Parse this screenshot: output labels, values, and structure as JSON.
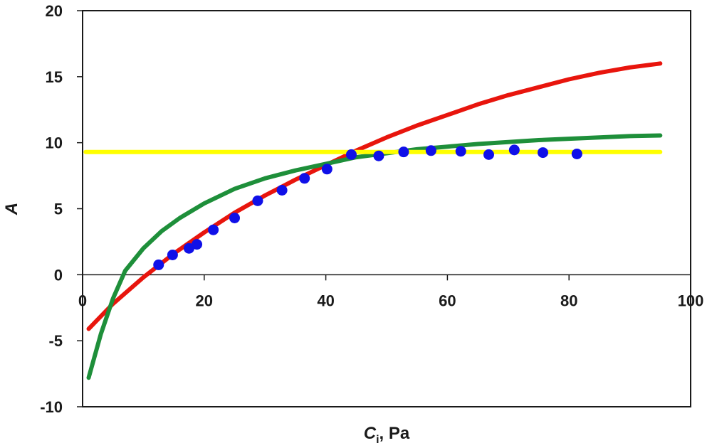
{
  "chart_data": {
    "type": "scatter",
    "xlim": [
      0,
      100
    ],
    "ylim": [
      -10,
      20
    ],
    "x_ticks": [
      0,
      20,
      40,
      60,
      80,
      100
    ],
    "y_ticks": [
      -10,
      -5,
      0,
      5,
      10,
      15,
      20
    ],
    "xlabel_main": "C",
    "xlabel_sub": "i",
    "xlabel_rest": ", Pa",
    "ylabel": "A",
    "grid": false,
    "legend": "none",
    "series": [
      {
        "kind": "line",
        "color": "#e8150d",
        "x": [
          1,
          5,
          10,
          15,
          20,
          25,
          30,
          35,
          40,
          45,
          50,
          55,
          60,
          65,
          70,
          75,
          80,
          85,
          90,
          95
        ],
        "y": [
          -4.1,
          -2.2,
          -0.2,
          1.6,
          3.2,
          4.7,
          6.0,
          7.2,
          8.3,
          9.4,
          10.4,
          11.3,
          12.1,
          12.9,
          13.6,
          14.2,
          14.8,
          15.3,
          15.7,
          16.0
        ]
      },
      {
        "kind": "line",
        "color": "#1e8f3a",
        "x": [
          1,
          3,
          5,
          7,
          10,
          13,
          16,
          20,
          25,
          30,
          35,
          40,
          45,
          50,
          55,
          60,
          65,
          70,
          75,
          80,
          85,
          90,
          95
        ],
        "y": [
          -7.8,
          -4.5,
          -1.8,
          0.3,
          2.0,
          3.3,
          4.3,
          5.4,
          6.5,
          7.3,
          7.9,
          8.4,
          8.9,
          9.2,
          9.5,
          9.7,
          9.9,
          10.05,
          10.2,
          10.3,
          10.4,
          10.5,
          10.55
        ]
      },
      {
        "kind": "line",
        "color": "#ffff00",
        "x": [
          0.5,
          95
        ],
        "y": [
          9.3,
          9.3
        ]
      },
      {
        "kind": "scatter",
        "color": "#1010e8",
        "x": [
          12.5,
          14.8,
          17.5,
          18.8,
          21.5,
          25.0,
          28.8,
          32.8,
          36.5,
          40.2,
          44.2,
          48.7,
          52.8,
          57.3,
          62.2,
          66.8,
          71.0,
          75.7,
          81.3
        ],
        "y": [
          0.75,
          1.5,
          2.0,
          2.3,
          3.4,
          4.3,
          5.6,
          6.4,
          7.3,
          8.0,
          9.1,
          9.0,
          9.3,
          9.4,
          9.35,
          9.1,
          9.45,
          9.25,
          9.15
        ]
      }
    ]
  }
}
